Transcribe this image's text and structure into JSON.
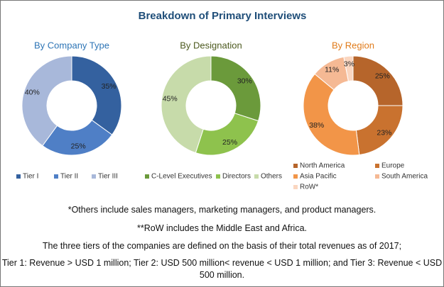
{
  "title": "Breakdown of Primary Interviews",
  "chart_data": [
    {
      "type": "donut",
      "title": "By Company Type",
      "title_color": "#2e75b6",
      "categories": [
        "Tier I",
        "Tier II",
        "Tier III"
      ],
      "values": [
        35,
        25,
        40
      ],
      "value_labels": [
        "35%",
        "25%",
        "40%"
      ],
      "colors": [
        "#34619f",
        "#4f7fc6",
        "#a8b8da"
      ]
    },
    {
      "type": "donut",
      "title": "By Designation",
      "title_color": "#4d5a1f",
      "categories": [
        "C-Level Executives",
        "Directors",
        "Others"
      ],
      "values": [
        30,
        25,
        45
      ],
      "value_labels": [
        "30%",
        "25%",
        "45%"
      ],
      "colors": [
        "#6b9a3b",
        "#8ec24d",
        "#c7dbaa"
      ]
    },
    {
      "type": "donut",
      "title": "By Region",
      "title_color": "#e07b1a",
      "categories": [
        "North America",
        "Europe",
        "Asia Pacific",
        "South America",
        "RoW*"
      ],
      "values": [
        25,
        23,
        38,
        11,
        3
      ],
      "value_labels": [
        "25%",
        "23%",
        "38%",
        "11%",
        "3%"
      ],
      "colors": [
        "#b6652b",
        "#c9722f",
        "#f29548",
        "#f5b994",
        "#fad6c0"
      ]
    }
  ],
  "notes": [
    "*Others include sales managers, marketing managers, and product managers.",
    "**RoW includes the Middle East and Africa.",
    "The three tiers of the companies are defined on the basis of their total revenues as of 2017;",
    "Tier 1: Revenue > USD 1 million; Tier 2: USD 500 million< revenue < USD 1 million; and Tier 3: Revenue < USD 500 million."
  ]
}
